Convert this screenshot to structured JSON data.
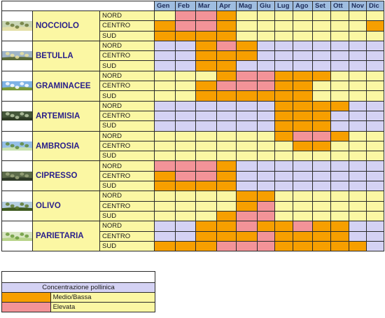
{
  "months": [
    "Gen",
    "Feb",
    "Mar",
    "Apr",
    "Mag",
    "Giu",
    "Lug",
    "Ago",
    "Set",
    "Ott",
    "Nov",
    "Dic"
  ],
  "regions": [
    "NORD",
    "CENTRO",
    "SUD"
  ],
  "plants": [
    {
      "name": "NOCCIOLO",
      "image": "hazel-catkins-photo",
      "rows": [
        [
          1,
          3,
          3,
          2,
          1,
          1,
          1,
          1,
          1,
          1,
          1,
          1
        ],
        [
          2,
          3,
          3,
          2,
          1,
          1,
          1,
          1,
          1,
          1,
          1,
          2
        ],
        [
          2,
          2,
          2,
          2,
          1,
          1,
          1,
          1,
          1,
          1,
          1,
          1
        ]
      ]
    },
    {
      "name": "BETULLA",
      "image": "birch-catkins-photo",
      "rows": [
        [
          0,
          0,
          2,
          3,
          2,
          0,
          0,
          0,
          0,
          0,
          0,
          0
        ],
        [
          0,
          0,
          2,
          2,
          2,
          0,
          0,
          0,
          0,
          0,
          0,
          0
        ],
        [
          0,
          0,
          2,
          2,
          0,
          0,
          0,
          0,
          0,
          0,
          0,
          0
        ]
      ]
    },
    {
      "name": "GRAMINACEE",
      "image": "grass-sky-photo",
      "rows": [
        [
          1,
          1,
          1,
          2,
          3,
          3,
          2,
          2,
          2,
          1,
          1,
          1
        ],
        [
          1,
          1,
          2,
          3,
          3,
          3,
          2,
          2,
          1,
          1,
          1,
          1
        ],
        [
          1,
          1,
          2,
          2,
          2,
          2,
          2,
          2,
          1,
          1,
          1,
          1
        ]
      ]
    },
    {
      "name": "ARTEMISIA",
      "image": "mugwort-photo",
      "rows": [
        [
          0,
          0,
          0,
          0,
          0,
          0,
          2,
          2,
          2,
          2,
          0,
          0
        ],
        [
          0,
          0,
          0,
          0,
          0,
          0,
          2,
          2,
          2,
          0,
          0,
          0
        ],
        [
          0,
          0,
          0,
          0,
          0,
          0,
          2,
          2,
          2,
          0,
          0,
          0
        ]
      ]
    },
    {
      "name": "AMBROSIA",
      "image": "ragweed-photo",
      "rows": [
        [
          1,
          1,
          1,
          1,
          1,
          1,
          2,
          3,
          3,
          2,
          1,
          1
        ],
        [
          1,
          1,
          1,
          1,
          1,
          1,
          1,
          2,
          2,
          1,
          1,
          1
        ],
        [
          1,
          1,
          1,
          1,
          1,
          1,
          1,
          1,
          1,
          1,
          1,
          1
        ]
      ]
    },
    {
      "name": "CIPRESSO",
      "image": "cypress-branch-photo",
      "rows": [
        [
          3,
          3,
          3,
          2,
          0,
          0,
          0,
          0,
          0,
          0,
          0,
          0
        ],
        [
          2,
          3,
          3,
          2,
          0,
          0,
          0,
          0,
          0,
          0,
          0,
          0
        ],
        [
          2,
          2,
          2,
          2,
          0,
          0,
          0,
          0,
          0,
          0,
          0,
          0
        ]
      ]
    },
    {
      "name": "OLIVO",
      "image": "olive-branch-photo",
      "rows": [
        [
          1,
          1,
          1,
          1,
          2,
          2,
          1,
          1,
          1,
          1,
          1,
          1
        ],
        [
          1,
          1,
          1,
          1,
          2,
          3,
          1,
          1,
          1,
          1,
          1,
          1
        ],
        [
          1,
          1,
          1,
          2,
          3,
          3,
          1,
          1,
          1,
          1,
          1,
          1
        ]
      ]
    },
    {
      "name": "PARIETARIA",
      "image": "parietaria-plant-photo",
      "rows": [
        [
          0,
          0,
          2,
          2,
          3,
          2,
          2,
          3,
          2,
          2,
          0,
          0
        ],
        [
          0,
          0,
          2,
          2,
          2,
          3,
          2,
          2,
          2,
          2,
          0,
          0
        ],
        [
          2,
          2,
          2,
          3,
          3,
          3,
          2,
          2,
          2,
          2,
          2,
          0
        ]
      ]
    }
  ],
  "legend": {
    "title": "Concentrazione pollinica",
    "items": [
      {
        "label": "Medio/Bassa",
        "color": "#f79f00"
      },
      {
        "label": "Elevata",
        "color": "#f39398"
      }
    ]
  },
  "colors": {
    "absent_blue": "#d4d2f4",
    "low_yellow": "#fbf7a3",
    "medium_orange": "#f79f00",
    "high_pink": "#f39398",
    "month_header": "#9fbde0"
  }
}
